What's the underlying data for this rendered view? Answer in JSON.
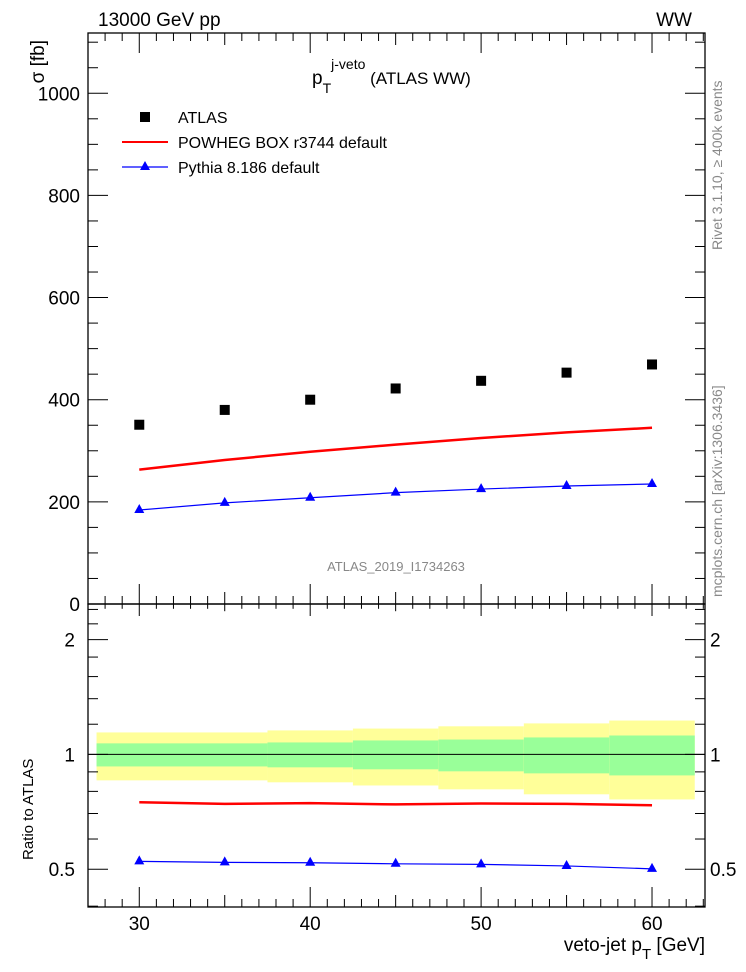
{
  "header": {
    "left": "13000 GeV pp",
    "right": "WW"
  },
  "side_text": {
    "rivet": "Rivet 3.1.10, ≥ 400k events",
    "mcplots": "mcplots.cern.ch [arXiv:1306.3436]"
  },
  "analysis_id": "ATLAS_2019_I1734263",
  "chart_data": [
    {
      "type": "scatter",
      "title": {
        "main": "p",
        "sub": "T",
        "sup": "j-veto",
        "rest": " (ATLAS WW)"
      },
      "ylabel": "σ [fb]",
      "xlim": [
        27,
        63.1
      ],
      "ylim": [
        0,
        1118
      ],
      "yticks": [
        0,
        200,
        400,
        600,
        800,
        1000
      ],
      "ytick_labels": [
        "0",
        "200",
        "400",
        "600",
        "800",
        "1000"
      ],
      "x": [
        30,
        35,
        40,
        45,
        50,
        55,
        60
      ],
      "series": [
        {
          "name": "ATLAS",
          "style": "square-markers",
          "color": "#000000",
          "values": [
            351,
            380,
            400,
            422,
            437,
            453,
            469
          ]
        },
        {
          "name": "POWHEG BOX r3744 default",
          "style": "line",
          "color": "#ff0000",
          "values": [
            263,
            282,
            298,
            312,
            325,
            336,
            345
          ]
        },
        {
          "name": "Pythia 8.186 default",
          "style": "line-triangles",
          "color": "#0000ff",
          "values": [
            184,
            198,
            208,
            218,
            225,
            231,
            235
          ]
        }
      ],
      "legend": "top-left"
    },
    {
      "type": "line",
      "ylabel": "Ratio to ATLAS",
      "xlabel": {
        "main": "veto-jet p",
        "sub": "T",
        "rest": " [GeV]"
      },
      "yscale": "log",
      "ylim": [
        0.398,
        2.48
      ],
      "yticks": [
        0.5,
        1,
        2
      ],
      "ytick_labels": [
        "0.5",
        "1",
        "2"
      ],
      "xticks": [
        30,
        40,
        50,
        60
      ],
      "xtick_labels": [
        "30",
        "40",
        "50",
        "60"
      ],
      "bins": [
        [
          27.5,
          32.5
        ],
        [
          32.5,
          37.5
        ],
        [
          37.5,
          42.5
        ],
        [
          42.5,
          47.5
        ],
        [
          47.5,
          52.5
        ],
        [
          52.5,
          57.5
        ],
        [
          57.5,
          62.5
        ]
      ],
      "band_outer": [
        [
          0.855,
          1.142
        ],
        [
          0.855,
          1.142
        ],
        [
          0.845,
          1.156
        ],
        [
          0.829,
          1.169
        ],
        [
          0.81,
          1.185
        ],
        [
          0.786,
          1.206
        ],
        [
          0.762,
          1.227
        ]
      ],
      "band_inner": [
        [
          0.93,
          1.069
        ],
        [
          0.93,
          1.069
        ],
        [
          0.925,
          1.075
        ],
        [
          0.914,
          1.088
        ],
        [
          0.903,
          1.094
        ],
        [
          0.892,
          1.108
        ],
        [
          0.881,
          1.121
        ]
      ],
      "band_colors": {
        "outer": "#ffff99",
        "inner": "#99ff99"
      }
    }
  ]
}
